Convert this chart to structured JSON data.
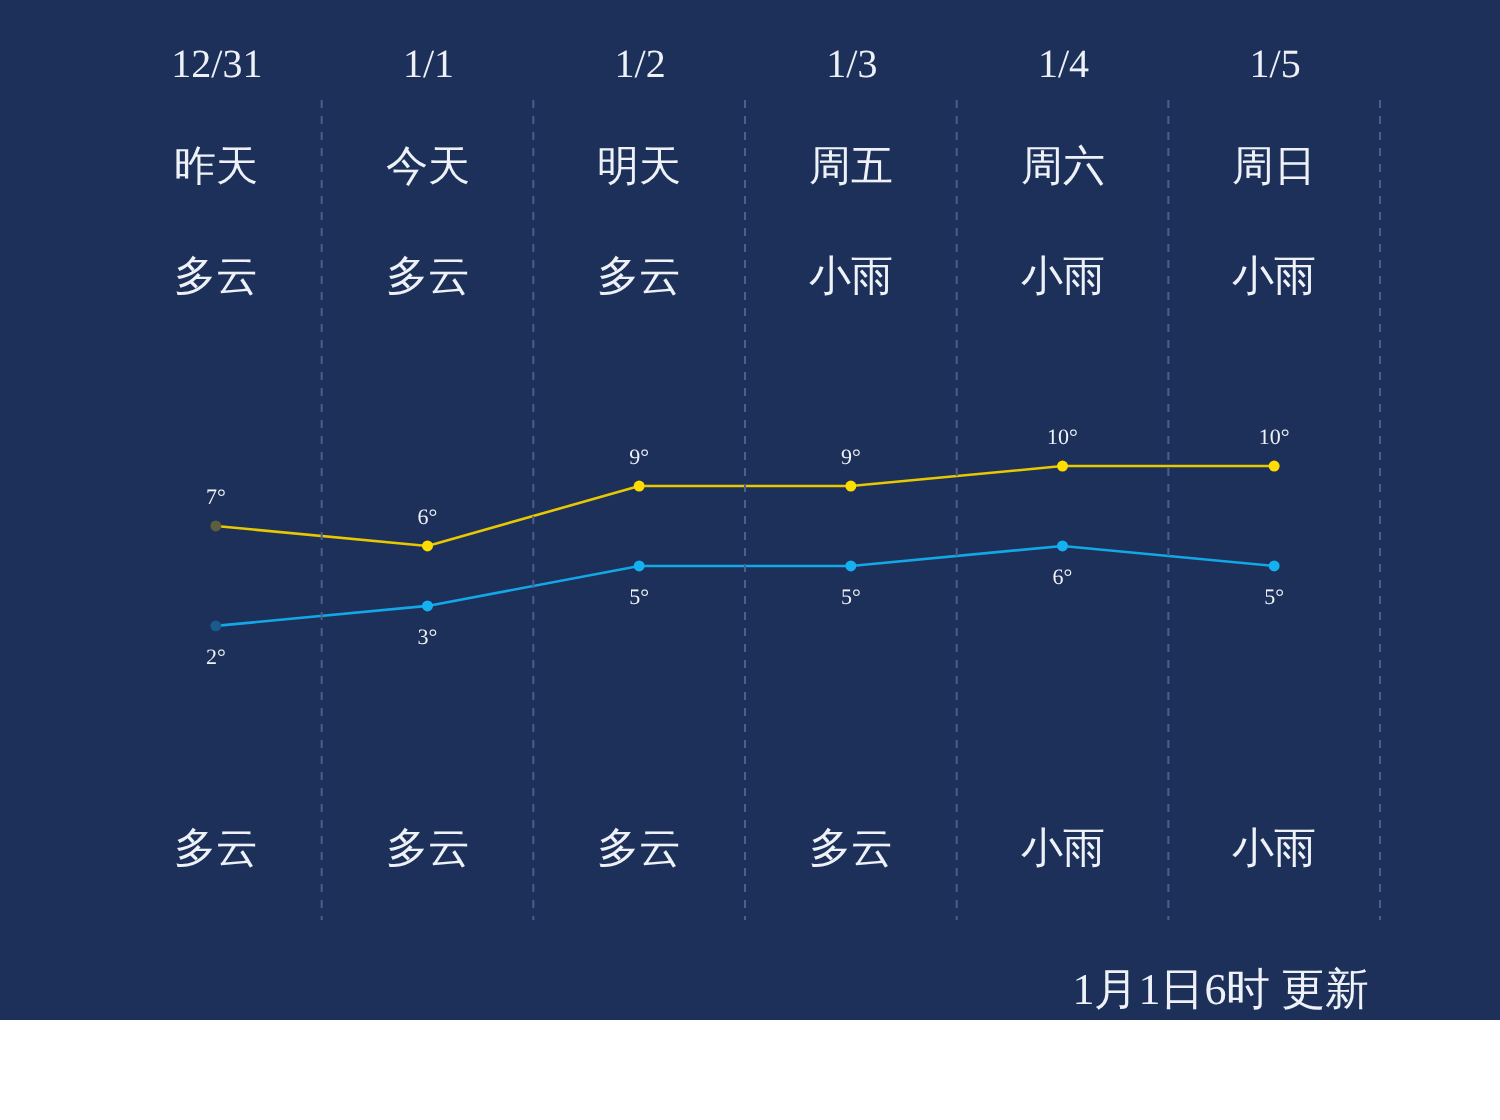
{
  "chart_data": {
    "type": "line",
    "categories": [
      "12/31",
      "1/1",
      "1/2",
      "1/3",
      "1/4",
      "1/5"
    ],
    "series": [
      {
        "color": "#e8c800",
        "colors": [
          "#5c5f3c",
          "#ffdd00",
          "#ffdd00",
          "#ffdd00",
          "#ffdd00",
          "#ffdd00"
        ],
        "values": [
          7,
          6,
          9,
          9,
          10,
          10
        ],
        "value_labels": [
          "7°",
          "6°",
          "9°",
          "9°",
          "10°",
          "10°"
        ]
      },
      {
        "color": "#14a7e6",
        "colors": [
          "#1b5a8a",
          "#14b0f0",
          "#14b0f0",
          "#14b0f0",
          "#14b0f0",
          "#14b0f0"
        ],
        "values": [
          2,
          3,
          5,
          5,
          6,
          5
        ],
        "value_labels": [
          "2°",
          "3°",
          "5°",
          "5°",
          "6°",
          "5°"
        ]
      }
    ],
    "annotations": [
      "昨天",
      "今天",
      "明天",
      "周五",
      "周六",
      "周日",
      "多云",
      "多云",
      "多云",
      "小雨",
      "小雨",
      "小雨",
      "多云",
      "多云",
      "多云",
      "多云",
      "小雨",
      "小雨",
      "1月1日6时 更新"
    ],
    "grid": "x",
    "marker": "circle",
    "line_style": "solid"
  }
}
